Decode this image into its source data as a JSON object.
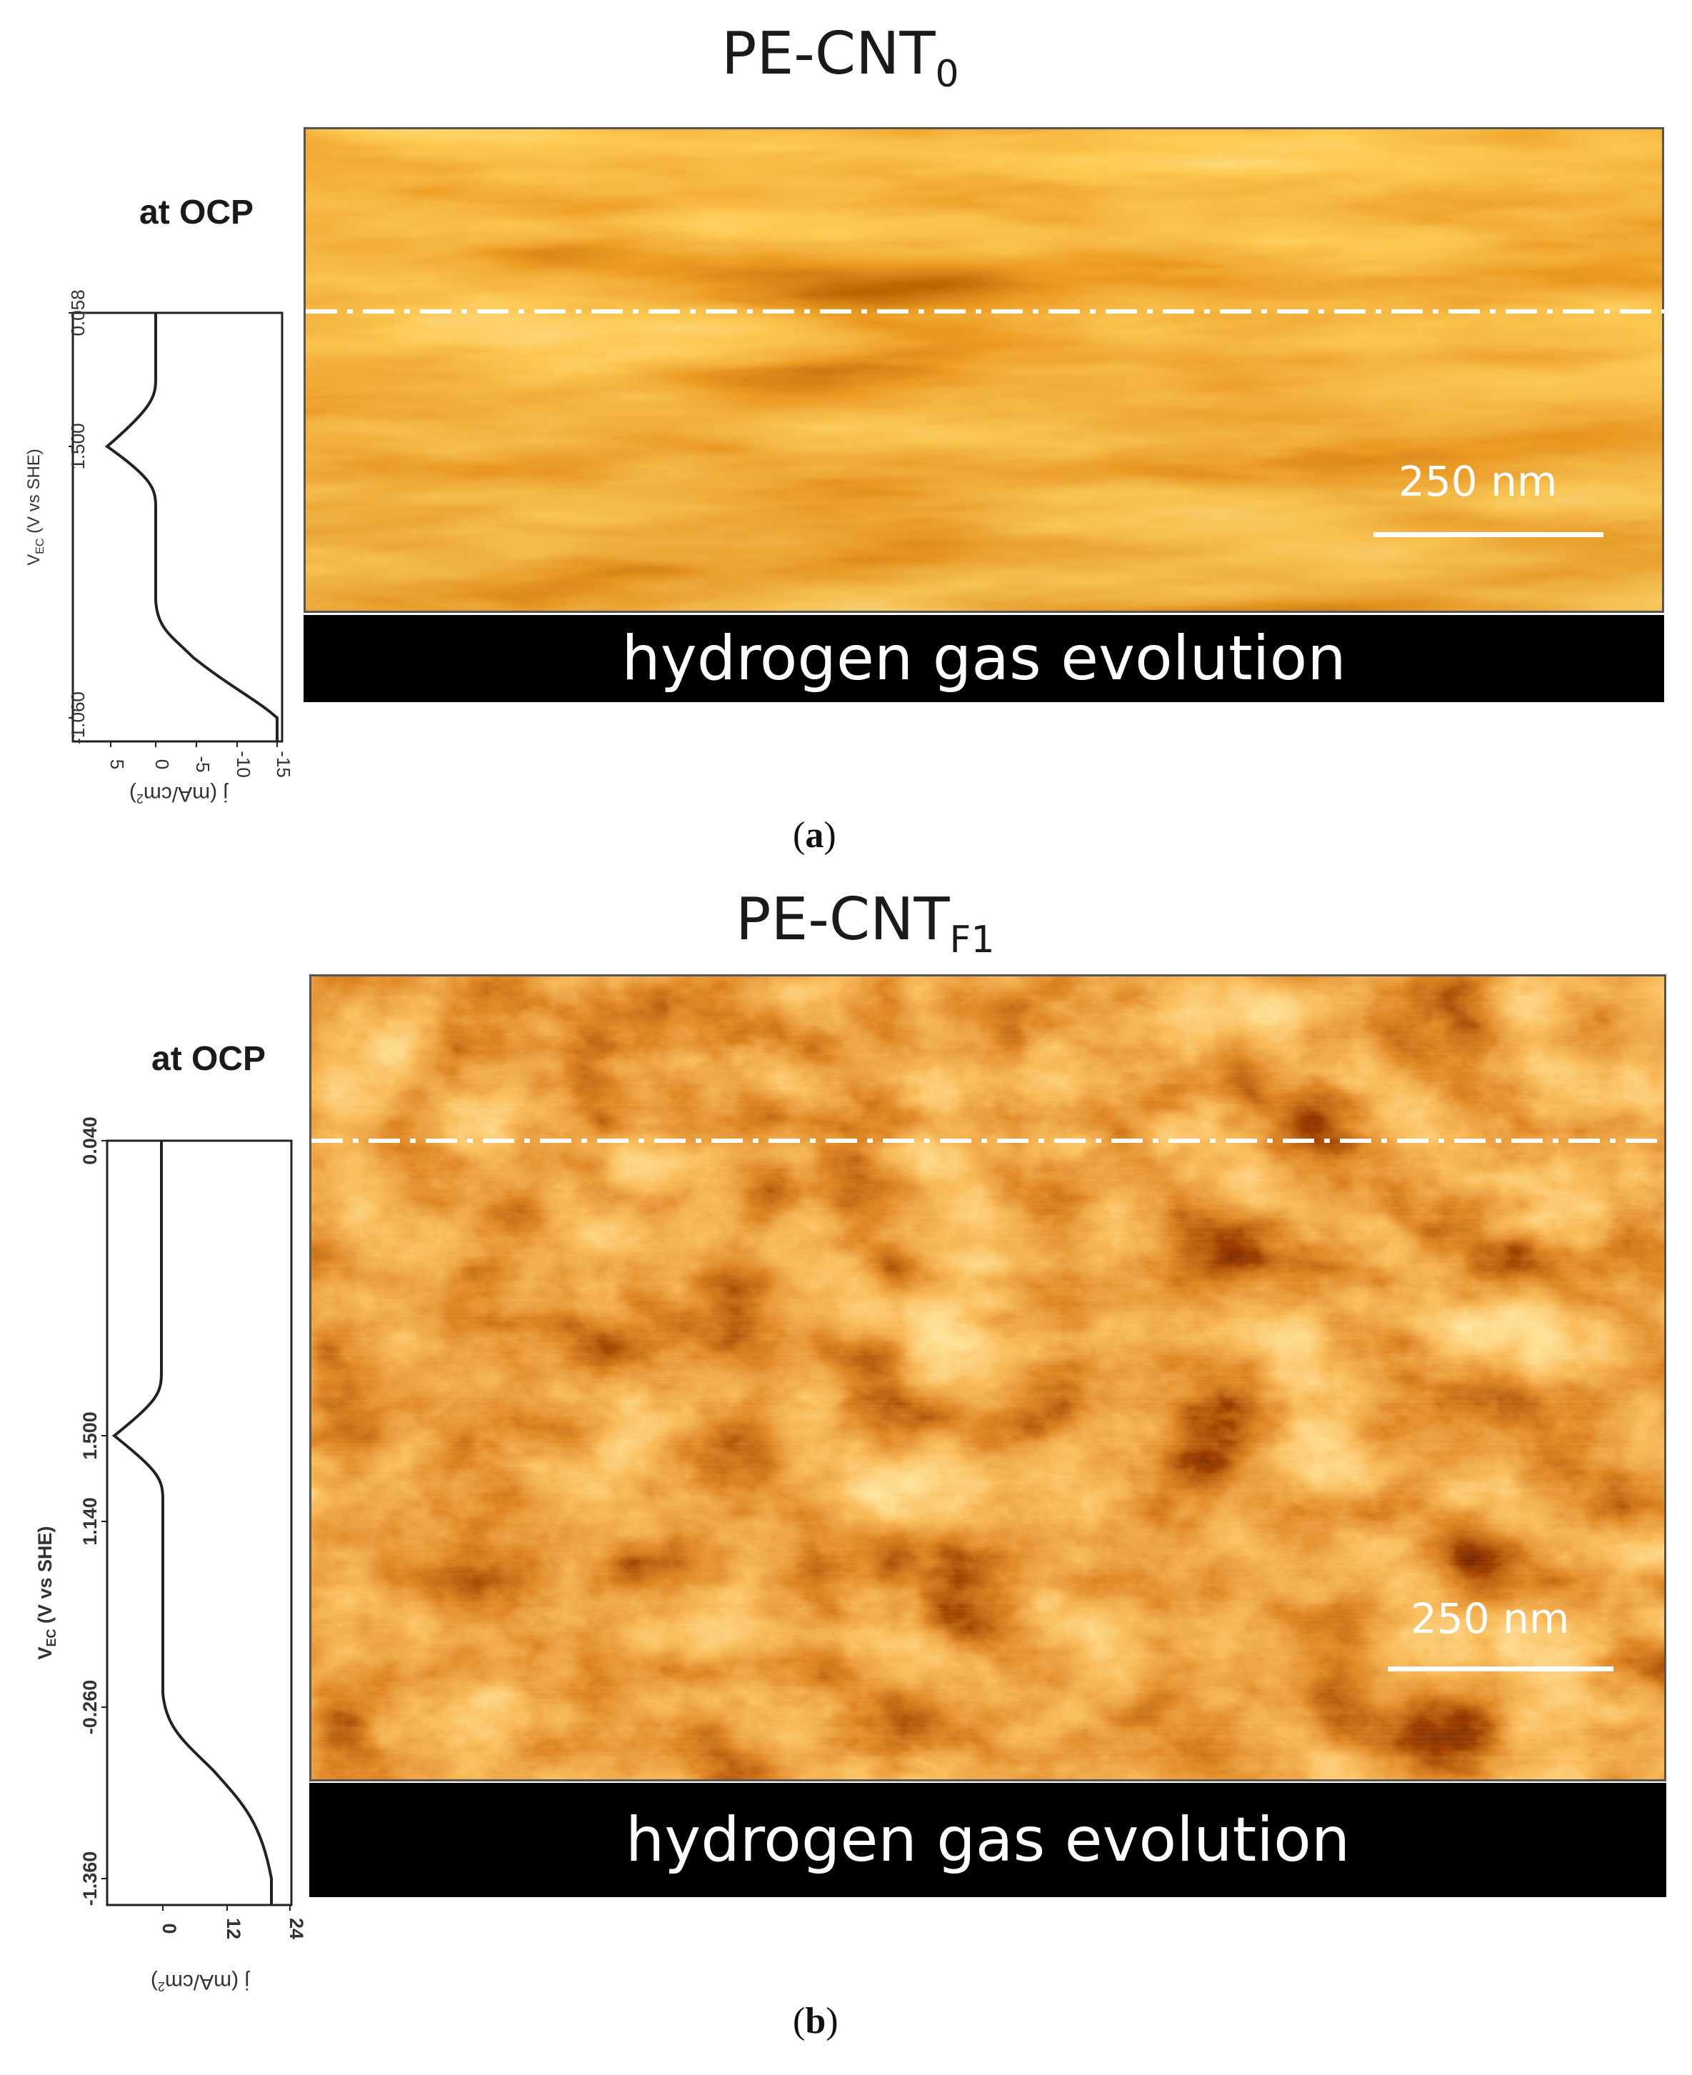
{
  "panel_a": {
    "title_main": "PE-CNT",
    "title_sub": "0",
    "ocp_label": "at OCP",
    "scale_label": "250 nm",
    "banner": "hydrogen gas evolution",
    "caption_open": "(",
    "caption_letter": "a",
    "caption_close": ")",
    "voltage_axis_label_main": "V",
    "voltage_axis_label_sub": "EC",
    "voltage_axis_label_rest": " (V vs SHE)",
    "current_axis_label": "j (mA/cm",
    "current_axis_label_sup": "2",
    "current_axis_label_close": ")",
    "voltage_ticks": [
      "0.058",
      "1.500",
      "-1.060"
    ],
    "current_ticks": [
      "5",
      "0",
      "-5",
      "-10",
      "-15"
    ],
    "colormap": "afmhot"
  },
  "panel_b": {
    "title_main": "PE-CNT",
    "title_sub": "F1",
    "ocp_label": "at OCP",
    "scale_label": "250 nm",
    "banner": "hydrogen gas evolution",
    "caption_open": "(",
    "caption_letter": "b",
    "caption_close": ")",
    "voltage_axis_label_main": "V",
    "voltage_axis_label_sub": "EC",
    "voltage_axis_label_rest": " (V vs SHE)",
    "current_axis_label": "j (mA/cm",
    "current_axis_label_sup": "2",
    "current_axis_label_close": ")",
    "voltage_ticks": [
      "0.040",
      "1.500",
      "1.140",
      "-0.260",
      "-1.360"
    ],
    "current_ticks": [
      "0",
      "12",
      "24"
    ],
    "colormap": "afmhot"
  }
}
